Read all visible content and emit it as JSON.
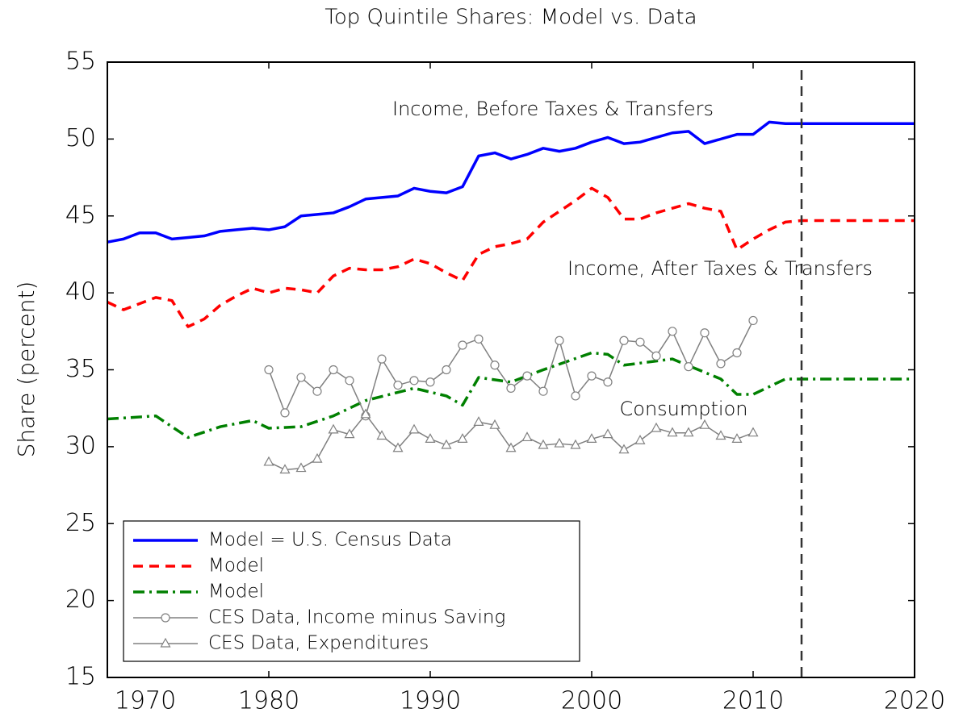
{
  "chart_data": {
    "type": "line",
    "title": "Top Quintile Shares: Model vs. Data",
    "y_label": "Share (percent)",
    "xlim": [
      1970,
      2020
    ],
    "xticks": [
      1970,
      1980,
      1990,
      2000,
      2010,
      2020
    ],
    "ylim": [
      15,
      55
    ],
    "yticks": [
      15,
      20,
      25,
      30,
      35,
      40,
      45,
      50,
      55
    ],
    "vline": 2013,
    "legend": "lower left",
    "annotations": [
      "Income, Before Taxes & Transfers",
      "Income, After Taxes & Transfers",
      "Consumption"
    ],
    "series": [
      {
        "name": "Model = U.S. Census Data",
        "color": "#0000ff",
        "style": "solid",
        "x": [
          1970,
          1971,
          1972,
          1973,
          1974,
          1975,
          1976,
          1977,
          1978,
          1979,
          1980,
          1981,
          1982,
          1983,
          1984,
          1985,
          1986,
          1987,
          1988,
          1989,
          1990,
          1991,
          1992,
          1993,
          1994,
          1995,
          1996,
          1997,
          1998,
          1999,
          2000,
          2001,
          2002,
          2003,
          2004,
          2005,
          2006,
          2007,
          2008,
          2009,
          2010,
          2011,
          2012,
          2013,
          2020
        ],
        "values": [
          43.3,
          43.5,
          43.9,
          43.9,
          43.5,
          43.6,
          43.7,
          44.0,
          44.1,
          44.2,
          44.1,
          44.3,
          45.0,
          45.1,
          45.2,
          45.6,
          46.1,
          46.2,
          46.3,
          46.8,
          46.6,
          46.5,
          46.9,
          48.9,
          49.1,
          48.7,
          49.0,
          49.4,
          49.2,
          49.4,
          49.8,
          50.1,
          49.7,
          49.8,
          50.1,
          50.4,
          50.5,
          49.7,
          50.0,
          50.3,
          50.3,
          51.1,
          51.0,
          51.0,
          51.0
        ]
      },
      {
        "name": "Model",
        "color": "#ff0000",
        "style": "dashed",
        "x": [
          1970,
          1971,
          1972,
          1973,
          1974,
          1975,
          1976,
          1977,
          1978,
          1979,
          1980,
          1981,
          1982,
          1983,
          1984,
          1985,
          1986,
          1987,
          1988,
          1989,
          1990,
          1991,
          1992,
          1993,
          1994,
          1995,
          1996,
          1997,
          1998,
          1999,
          2000,
          2001,
          2002,
          2003,
          2004,
          2005,
          2006,
          2007,
          2008,
          2009,
          2010,
          2011,
          2012,
          2013,
          2020
        ],
        "values": [
          39.4,
          38.9,
          39.3,
          39.7,
          39.5,
          37.8,
          38.3,
          39.2,
          39.8,
          40.3,
          40.0,
          40.3,
          40.2,
          40.0,
          41.1,
          41.6,
          41.5,
          41.5,
          41.7,
          42.2,
          41.9,
          41.3,
          40.8,
          42.5,
          43.0,
          43.2,
          43.5,
          44.6,
          45.3,
          46.0,
          46.8,
          46.2,
          44.8,
          44.8,
          45.2,
          45.5,
          45.8,
          45.5,
          45.3,
          42.8,
          43.5,
          44.1,
          44.6,
          44.7,
          44.7
        ]
      },
      {
        "name": "Model",
        "color": "#008000",
        "style": "dashdot",
        "x": [
          1970,
          1973,
          1975,
          1977,
          1979,
          1980,
          1982,
          1984,
          1986,
          1989,
          1991,
          1992,
          1993,
          1995,
          1997,
          2000,
          2001,
          2002,
          2005,
          2008,
          2009,
          2010,
          2012,
          2013,
          2020
        ],
        "values": [
          31.8,
          32.0,
          30.6,
          31.3,
          31.7,
          31.2,
          31.3,
          32.0,
          33.0,
          33.8,
          33.3,
          32.7,
          34.5,
          34.2,
          35.0,
          36.1,
          36.0,
          35.3,
          35.7,
          34.4,
          33.4,
          33.4,
          34.4,
          34.4,
          34.4
        ]
      },
      {
        "name": "CES Data, Income minus Saving",
        "color": "#808080",
        "style": "thin",
        "marker": "circle",
        "x": [
          1980,
          1981,
          1982,
          1983,
          1984,
          1985,
          1986,
          1987,
          1988,
          1989,
          1990,
          1991,
          1992,
          1993,
          1994,
          1995,
          1996,
          1997,
          1998,
          1999,
          2000,
          2001,
          2002,
          2003,
          2004,
          2005,
          2006,
          2007,
          2008,
          2009,
          2010
        ],
        "values": [
          35.0,
          32.2,
          34.5,
          33.6,
          35.0,
          34.3,
          32.0,
          35.7,
          34.0,
          34.3,
          34.2,
          35.0,
          36.6,
          37.0,
          35.3,
          33.8,
          34.6,
          33.6,
          36.9,
          33.3,
          34.6,
          34.2,
          36.9,
          36.8,
          35.9,
          37.5,
          35.2,
          37.4,
          35.4,
          36.1,
          38.2
        ]
      },
      {
        "name": "CES Data, Expenditures",
        "color": "#808080",
        "style": "thin",
        "marker": "triangle",
        "x": [
          1980,
          1981,
          1982,
          1983,
          1984,
          1985,
          1986,
          1987,
          1988,
          1989,
          1990,
          1991,
          1992,
          1993,
          1994,
          1995,
          1996,
          1997,
          1998,
          1999,
          2000,
          2001,
          2002,
          2003,
          2004,
          2005,
          2006,
          2007,
          2008,
          2009,
          2010
        ],
        "values": [
          29.0,
          28.5,
          28.6,
          29.2,
          31.1,
          30.8,
          32.1,
          30.7,
          29.9,
          31.1,
          30.5,
          30.1,
          30.5,
          31.6,
          31.4,
          29.9,
          30.6,
          30.1,
          30.2,
          30.1,
          30.5,
          30.8,
          29.8,
          30.4,
          31.2,
          30.9,
          30.9,
          31.4,
          30.7,
          30.5,
          30.9
        ]
      }
    ]
  }
}
